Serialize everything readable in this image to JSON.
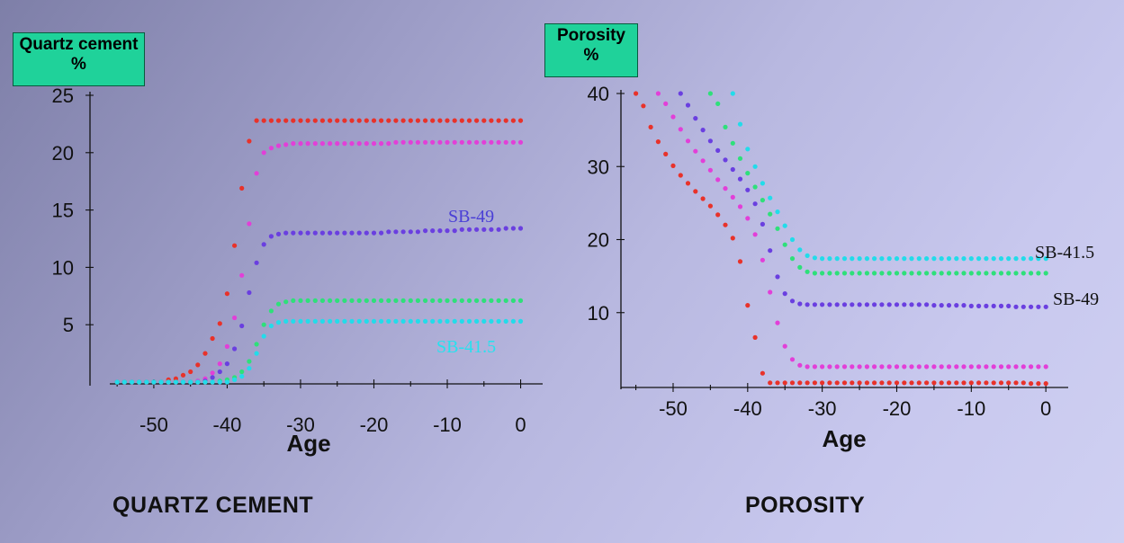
{
  "chart_data": [
    {
      "type": "scatter",
      "ylabel_line1": "Quartz cement",
      "ylabel_line2": "%",
      "xlabel": "Age",
      "bottom_title": "QUARTZ CEMENT",
      "xlim": [
        -56,
        3
      ],
      "ylim": [
        0,
        25
      ],
      "xticks": [
        -50,
        -40,
        -30,
        -20,
        -10,
        0
      ],
      "yticks": [
        5,
        10,
        15,
        20,
        25
      ],
      "grid": false,
      "x_step": 1,
      "series": [
        {
          "color": "#e8322a",
          "x_start": -55,
          "values": [
            0,
            0,
            0,
            0,
            0,
            0,
            0,
            0.2,
            0.3,
            0.6,
            0.9,
            1.5,
            2.5,
            3.8,
            5.1,
            7.7,
            11.9,
            16.9,
            21.0,
            22.8,
            22.8,
            22.8,
            22.8,
            22.8,
            22.8,
            22.8,
            22.8,
            22.8,
            22.8,
            22.8,
            22.8,
            22.8,
            22.8,
            22.8,
            22.8,
            22.8,
            22.8,
            22.8,
            22.8,
            22.8,
            22.8,
            22.8,
            22.8,
            22.8,
            22.8,
            22.8,
            22.8,
            22.8,
            22.8,
            22.8,
            22.8,
            22.8,
            22.8,
            22.8,
            22.8,
            22.8
          ]
        },
        {
          "color": "#e23fd8",
          "x_start": -55,
          "values": [
            0,
            0,
            0,
            0,
            0,
            0,
            0,
            0,
            0,
            0,
            0,
            0.1,
            0.3,
            0.8,
            1.6,
            3.1,
            5.6,
            9.3,
            13.8,
            18.2,
            20.0,
            20.4,
            20.6,
            20.7,
            20.8,
            20.8,
            20.8,
            20.8,
            20.8,
            20.8,
            20.8,
            20.8,
            20.8,
            20.8,
            20.8,
            20.8,
            20.8,
            20.8,
            20.9,
            20.9,
            20.9,
            20.9,
            20.9,
            20.9,
            20.9,
            20.9,
            20.9,
            20.9,
            20.9,
            20.9,
            20.9,
            20.9,
            20.9,
            20.9,
            20.9,
            20.9
          ]
        },
        {
          "color": "#6a3fe0",
          "name": "SB-49",
          "x_start": -55,
          "values": [
            0,
            0,
            0,
            0,
            0,
            0,
            0,
            0,
            0,
            0,
            0,
            0,
            0.1,
            0.4,
            0.9,
            1.6,
            2.9,
            4.9,
            7.8,
            10.4,
            12.0,
            12.7,
            12.9,
            13.0,
            13.0,
            13.0,
            13.0,
            13.0,
            13.0,
            13.0,
            13.0,
            13.0,
            13.0,
            13.0,
            13.0,
            13.0,
            13.0,
            13.1,
            13.1,
            13.1,
            13.1,
            13.1,
            13.2,
            13.2,
            13.2,
            13.2,
            13.2,
            13.3,
            13.3,
            13.3,
            13.3,
            13.3,
            13.3,
            13.4,
            13.4,
            13.4
          ]
        },
        {
          "color": "#2ee07a",
          "x_start": -55,
          "values": [
            0,
            0,
            0,
            0,
            0,
            0,
            0,
            0,
            0,
            0,
            0,
            0,
            0,
            0,
            0.1,
            0.2,
            0.4,
            0.9,
            1.8,
            3.3,
            5.0,
            6.2,
            6.8,
            7.0,
            7.1,
            7.1,
            7.1,
            7.1,
            7.1,
            7.1,
            7.1,
            7.1,
            7.1,
            7.1,
            7.1,
            7.1,
            7.1,
            7.1,
            7.1,
            7.1,
            7.1,
            7.1,
            7.1,
            7.1,
            7.1,
            7.1,
            7.1,
            7.1,
            7.1,
            7.1,
            7.1,
            7.1,
            7.1,
            7.1,
            7.1,
            7.1
          ]
        },
        {
          "color": "#22dcea",
          "name": "SB-41.5",
          "x_start": -55,
          "values": [
            0,
            0,
            0,
            0,
            0,
            0,
            0,
            0,
            0,
            0,
            0,
            0,
            0,
            0,
            0,
            0,
            0.2,
            0.5,
            1.2,
            2.5,
            4.0,
            4.9,
            5.2,
            5.3,
            5.3,
            5.3,
            5.3,
            5.3,
            5.3,
            5.3,
            5.3,
            5.3,
            5.3,
            5.3,
            5.3,
            5.3,
            5.3,
            5.3,
            5.3,
            5.3,
            5.3,
            5.3,
            5.3,
            5.3,
            5.3,
            5.3,
            5.3,
            5.3,
            5.3,
            5.3,
            5.3,
            5.3,
            5.3,
            5.3,
            5.3,
            5.3
          ]
        }
      ]
    },
    {
      "type": "scatter",
      "ylabel_line1": "Porosity",
      "ylabel_line2": "%",
      "xlabel": "Age",
      "bottom_title": "POROSITY",
      "xlim": [
        -57,
        3
      ],
      "ylim": [
        0,
        40
      ],
      "xticks": [
        -50,
        -40,
        -30,
        -20,
        -10,
        0
      ],
      "yticks": [
        10,
        20,
        30,
        40
      ],
      "grid": false,
      "x_step": 1,
      "series": [
        {
          "color": "#e8322a",
          "x_start": -55,
          "values": [
            40,
            38.3,
            35.4,
            33.4,
            31.7,
            30.1,
            28.8,
            27.7,
            26.6,
            25.6,
            24.6,
            23.4,
            22.0,
            20.2,
            17.0,
            11.0,
            6.6,
            1.7,
            0.4,
            0.4,
            0.4,
            0.4,
            0.4,
            0.4,
            0.4,
            0.4,
            0.4,
            0.4,
            0.4,
            0.4,
            0.4,
            0.4,
            0.4,
            0.4,
            0.4,
            0.4,
            0.4,
            0.4,
            0.4,
            0.4,
            0.4,
            0.4,
            0.4,
            0.4,
            0.4,
            0.4,
            0.4,
            0.4,
            0.4,
            0.4,
            0.4,
            0.4,
            0.4,
            0.3,
            0.3,
            0.3
          ]
        },
        {
          "color": "#e23fd8",
          "x_start": -52,
          "values": [
            40,
            38.6,
            36.8,
            35.1,
            33.5,
            32.1,
            30.8,
            29.5,
            28.2,
            27.0,
            25.8,
            24.5,
            22.9,
            20.7,
            17.2,
            12.8,
            8.6,
            5.4,
            3.6,
            2.8,
            2.6,
            2.6,
            2.6,
            2.6,
            2.6,
            2.6,
            2.6,
            2.6,
            2.6,
            2.6,
            2.6,
            2.6,
            2.6,
            2.6,
            2.6,
            2.6,
            2.6,
            2.6,
            2.6,
            2.6,
            2.6,
            2.6,
            2.6,
            2.6,
            2.6,
            2.6,
            2.6,
            2.6,
            2.6,
            2.6,
            2.6,
            2.6,
            2.6
          ]
        },
        {
          "color": "#6a3fe0",
          "name": "SB-49",
          "x_start": -49,
          "values": [
            40,
            38.4,
            36.6,
            35.0,
            33.5,
            32.2,
            30.9,
            29.6,
            28.3,
            26.8,
            24.9,
            22.1,
            18.5,
            14.9,
            12.6,
            11.6,
            11.2,
            11.1,
            11.1,
            11.1,
            11.1,
            11.1,
            11.1,
            11.1,
            11.1,
            11.1,
            11.1,
            11.1,
            11.1,
            11.1,
            11.1,
            11.1,
            11.1,
            11.1,
            11.0,
            11.0,
            11.0,
            11.0,
            11.0,
            10.9,
            10.9,
            10.9,
            10.9,
            10.9,
            10.9,
            10.8,
            10.8,
            10.8,
            10.8,
            10.8
          ]
        },
        {
          "color": "#2ee07a",
          "x_start": -45,
          "values": [
            40,
            38.6,
            35.4,
            33.2,
            31.1,
            29.1,
            27.2,
            25.4,
            23.5,
            21.5,
            19.3,
            17.4,
            16.2,
            15.6,
            15.4,
            15.4,
            15.4,
            15.4,
            15.4,
            15.4,
            15.4,
            15.4,
            15.4,
            15.4,
            15.4,
            15.4,
            15.4,
            15.4,
            15.4,
            15.4,
            15.4,
            15.4,
            15.4,
            15.4,
            15.4,
            15.4,
            15.4,
            15.4,
            15.4,
            15.4,
            15.4,
            15.4,
            15.4,
            15.4,
            15.4,
            15.4
          ]
        },
        {
          "color": "#22dcea",
          "name": "SB-41.5",
          "x_start": -42,
          "values": [
            40,
            35.8,
            32.4,
            30.0,
            27.7,
            25.7,
            23.8,
            21.9,
            20.0,
            18.6,
            17.8,
            17.5,
            17.4,
            17.4,
            17.4,
            17.4,
            17.4,
            17.4,
            17.4,
            17.4,
            17.4,
            17.4,
            17.4,
            17.4,
            17.4,
            17.4,
            17.4,
            17.4,
            17.4,
            17.4,
            17.4,
            17.4,
            17.4,
            17.4,
            17.4,
            17.4,
            17.4,
            17.4,
            17.4,
            17.4,
            17.4,
            17.4,
            17.4
          ]
        }
      ]
    }
  ]
}
